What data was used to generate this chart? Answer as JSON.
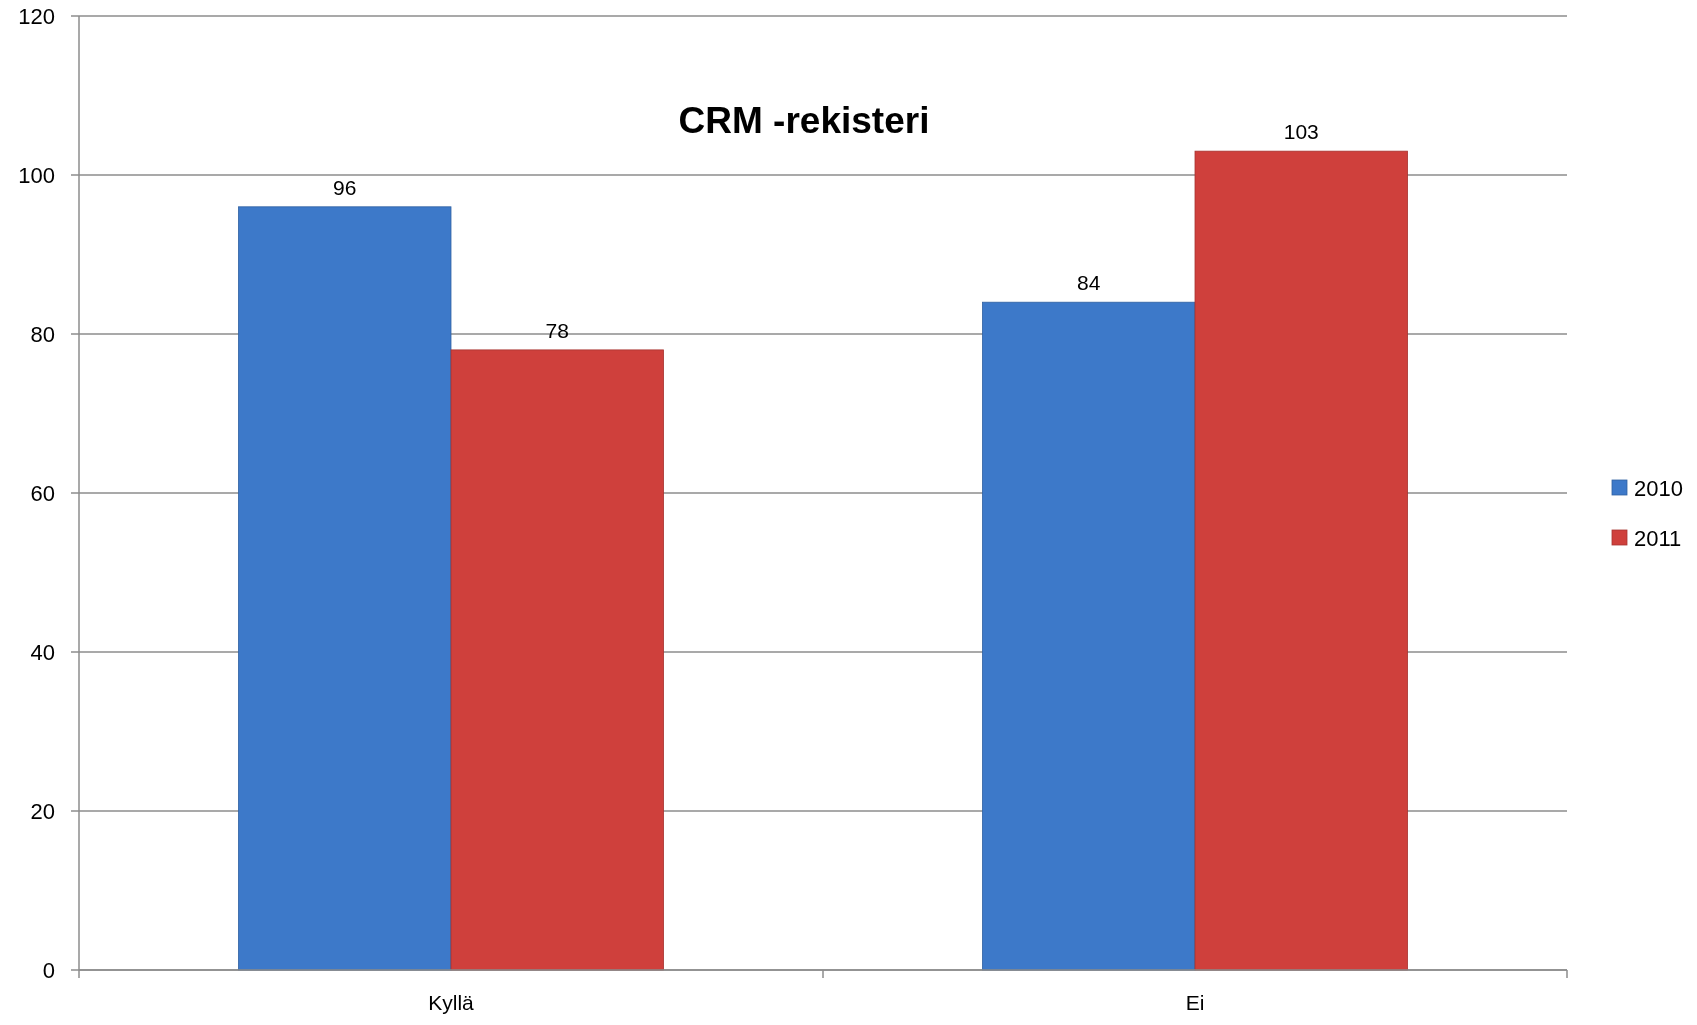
{
  "chart_data": {
    "type": "bar",
    "title": "CRM -rekisteri",
    "categories": [
      "Kyllä",
      "Ei"
    ],
    "series": [
      {
        "name": "2010",
        "color": "#3d79c9",
        "values": [
          96,
          84
        ]
      },
      {
        "name": "2011",
        "color": "#cf403c",
        "values": [
          78,
          103
        ]
      }
    ],
    "ylim": [
      0,
      120
    ],
    "yticks": [
      0,
      20,
      40,
      60,
      80,
      100,
      120
    ],
    "grid": "y",
    "legend": "right",
    "data_labels": true
  }
}
